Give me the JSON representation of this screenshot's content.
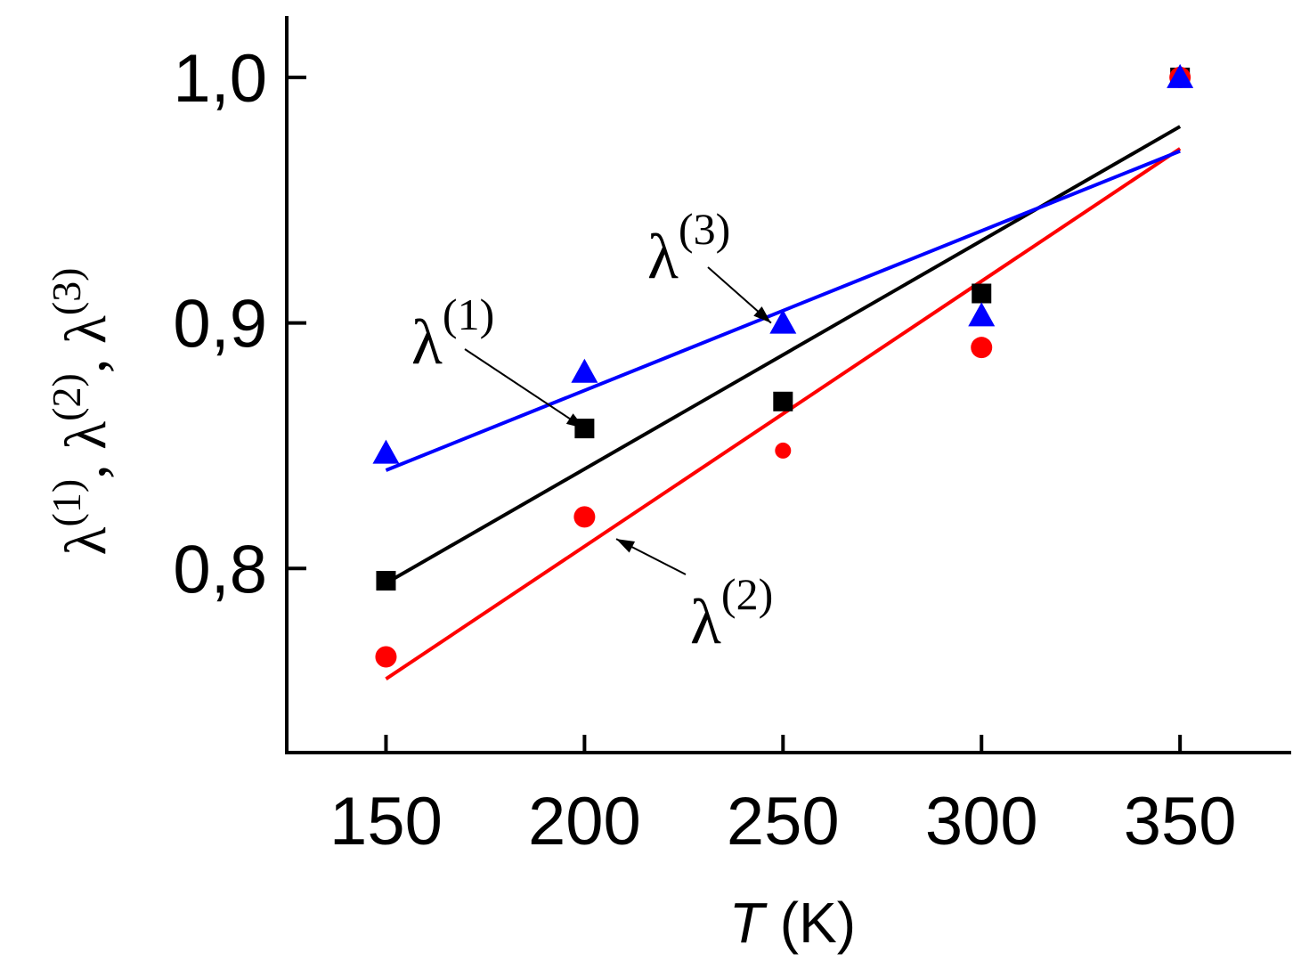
{
  "chart_data": {
    "type": "scatter",
    "title": "",
    "xlabel_var": "T",
    "xlabel_unit": "(K)",
    "ylabel_parts": [
      {
        "base": "λ",
        "sup": "(1)"
      },
      {
        "base": "λ",
        "sup": "(2)"
      },
      {
        "base": "λ",
        "sup": "(3)"
      }
    ],
    "ylabel_separator": ",",
    "xlim": [
      125,
      378
    ],
    "ylim": [
      0.725,
      1.025
    ],
    "x_ticks": [
      150,
      200,
      250,
      300,
      350
    ],
    "x_tick_labels": [
      "150",
      "200",
      "250",
      "300",
      "350"
    ],
    "y_ticks": [
      0.8,
      0.9,
      1.0
    ],
    "y_tick_labels": [
      "0,8",
      "0,9",
      "1,0"
    ],
    "grid": false,
    "series": [
      {
        "name": "λ(1)",
        "marker": "square",
        "color": "#000000",
        "x": [
          150,
          200,
          250,
          300,
          350
        ],
        "y": [
          0.795,
          0.857,
          0.868,
          0.912,
          1.0
        ],
        "fit": {
          "x": [
            150,
            350
          ],
          "y": [
            0.794,
            0.98
          ]
        }
      },
      {
        "name": "λ(2)",
        "marker": "circle",
        "color": "#ff0000",
        "x": [
          150,
          200,
          250,
          300,
          350
        ],
        "y": [
          0.764,
          0.821,
          0.848,
          0.89,
          1.0
        ],
        "fit": {
          "x": [
            150,
            350
          ],
          "y": [
            0.755,
            0.971
          ]
        }
      },
      {
        "name": "λ(3)",
        "marker": "triangle",
        "color": "#0000ff",
        "x": [
          150,
          200,
          250,
          300,
          350
        ],
        "y": [
          0.847,
          0.88,
          0.9,
          0.903,
          1.0
        ],
        "fit": {
          "x": [
            150,
            350
          ],
          "y": [
            0.84,
            0.97
          ]
        }
      }
    ],
    "annotations": [
      {
        "text": "λ",
        "sup": "(1)",
        "series": "λ(1)",
        "point_to": [
          200,
          0.857
        ]
      },
      {
        "text": "λ",
        "sup": "(2)",
        "series": "λ(2)",
        "point_to": [
          208,
          0.812
        ]
      },
      {
        "text": "λ",
        "sup": "(3)",
        "series": "λ(3)",
        "point_to": [
          247,
          0.9
        ]
      }
    ]
  }
}
